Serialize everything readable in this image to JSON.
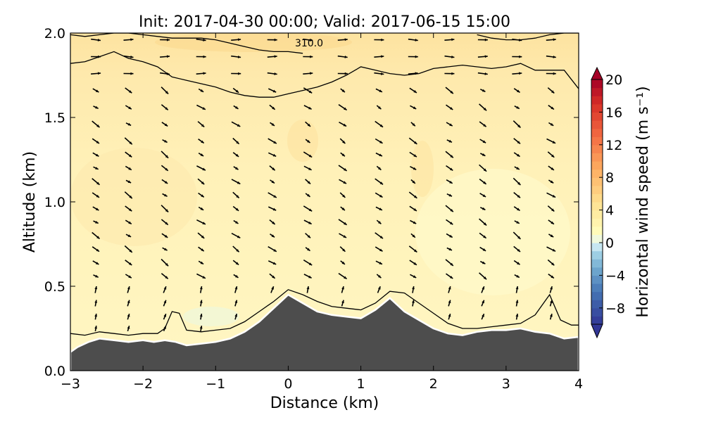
{
  "chart_data": {
    "type": "heatmap",
    "title": "Init: 2017-04-30 00:00; Valid: 2017-06-15 15:00",
    "xlabel": "Distance (km)",
    "ylabel": "Altitude (km)",
    "xlim": [
      -3,
      4
    ],
    "ylim": [
      0.0,
      2.0
    ],
    "x_ticks": [
      -3,
      -2,
      -1,
      0,
      1,
      2,
      3,
      4
    ],
    "x_tick_labels": [
      "−3",
      "−2",
      "−1",
      "0",
      "1",
      "2",
      "3",
      "4"
    ],
    "y_ticks": [
      0.0,
      0.5,
      1.0,
      1.5,
      2.0
    ],
    "y_tick_labels": [
      "0.0",
      "0.5",
      "1.0",
      "1.5",
      "2.0"
    ],
    "colorbar": {
      "label": "Horizontal wind speed (m s⁻¹)",
      "range": [
        -10,
        20
      ],
      "ticks": [
        20,
        16,
        12,
        8,
        4,
        0,
        -4,
        -8
      ],
      "tick_labels": [
        "20",
        "16",
        "12",
        "8",
        "4",
        "0",
        "−4",
        "−8"
      ],
      "colormap": "RdYlBu_r",
      "extend": "both"
    },
    "contour_label": "310.0",
    "terrain": {
      "x": [
        -3.0,
        -2.9,
        -2.75,
        -2.6,
        -2.4,
        -2.2,
        -2.0,
        -1.85,
        -1.7,
        -1.55,
        -1.4,
        -1.2,
        -1.0,
        -0.8,
        -0.6,
        -0.4,
        -0.2,
        0.0,
        0.2,
        0.4,
        0.6,
        0.8,
        1.0,
        1.2,
        1.4,
        1.6,
        1.8,
        2.0,
        2.2,
        2.4,
        2.6,
        2.8,
        3.0,
        3.2,
        3.4,
        3.6,
        3.8,
        4.0
      ],
      "y": [
        0.11,
        0.14,
        0.17,
        0.19,
        0.18,
        0.17,
        0.18,
        0.17,
        0.18,
        0.17,
        0.15,
        0.16,
        0.17,
        0.19,
        0.23,
        0.29,
        0.37,
        0.45,
        0.4,
        0.35,
        0.33,
        0.32,
        0.31,
        0.36,
        0.43,
        0.35,
        0.3,
        0.25,
        0.22,
        0.21,
        0.23,
        0.24,
        0.24,
        0.25,
        0.23,
        0.22,
        0.19,
        0.2
      ]
    },
    "terrain_color": "#4d4d4d",
    "contour_lines": [
      {
        "x": [
          -3.0,
          -2.8,
          -2.6,
          -2.4,
          -2.2,
          -2.0,
          -1.8,
          -1.7,
          -1.6,
          -1.5,
          -1.4,
          -1.2,
          -1.0,
          -0.8,
          -0.6,
          -0.4,
          -0.2,
          0.0,
          0.2,
          0.4,
          0.6,
          0.8,
          1.0,
          1.2,
          1.4,
          1.6,
          1.8,
          2.0,
          2.2,
          2.4,
          2.6,
          2.8,
          3.0,
          3.2,
          3.4,
          3.6,
          3.75,
          3.9,
          4.0
        ],
        "y": [
          0.22,
          0.21,
          0.23,
          0.22,
          0.21,
          0.22,
          0.22,
          0.25,
          0.35,
          0.34,
          0.24,
          0.23,
          0.24,
          0.25,
          0.29,
          0.35,
          0.41,
          0.48,
          0.45,
          0.41,
          0.38,
          0.37,
          0.36,
          0.4,
          0.47,
          0.46,
          0.4,
          0.34,
          0.28,
          0.25,
          0.25,
          0.26,
          0.27,
          0.28,
          0.33,
          0.45,
          0.3,
          0.27,
          0.27
        ]
      },
      {
        "x": [
          -3.0,
          -2.8,
          -2.6,
          -2.4,
          -2.2,
          -2.0,
          -1.8,
          -1.6,
          -1.4,
          -1.2,
          -1.0,
          -0.8,
          -0.6,
          -0.4,
          -0.2,
          0.0,
          0.2,
          0.4,
          0.6,
          0.8,
          1.0,
          1.2,
          1.4,
          1.6,
          1.8,
          2.0,
          2.2,
          2.4,
          2.6,
          2.8,
          3.0,
          3.2,
          3.4,
          3.6,
          3.8,
          4.0
        ],
        "y": [
          1.82,
          1.83,
          1.86,
          1.89,
          1.85,
          1.83,
          1.8,
          1.74,
          1.72,
          1.7,
          1.68,
          1.65,
          1.63,
          1.62,
          1.62,
          1.64,
          1.66,
          1.68,
          1.71,
          1.75,
          1.8,
          1.78,
          1.76,
          1.75,
          1.76,
          1.79,
          1.8,
          1.81,
          1.8,
          1.79,
          1.8,
          1.82,
          1.78,
          1.78,
          1.78,
          1.67
        ]
      },
      {
        "x": [
          -3.0,
          -2.8,
          -2.6,
          -2.4,
          -2.2,
          -2.0,
          -1.8,
          -1.6,
          -1.4,
          -1.2,
          -1.0,
          -0.8,
          -0.6,
          -0.4,
          -0.2,
          0.0,
          0.2
        ],
        "y": [
          1.99,
          1.98,
          1.99,
          2.0,
          2.0,
          1.99,
          1.98,
          1.97,
          1.97,
          1.97,
          1.96,
          1.94,
          1.92,
          1.9,
          1.89,
          1.89,
          1.88
        ]
      },
      {
        "x": [
          2.6,
          2.8,
          3.0,
          3.2,
          3.4,
          3.6,
          3.8,
          4.0
        ],
        "y": [
          1.99,
          1.97,
          1.96,
          1.96,
          1.97,
          1.99,
          2.0,
          2.0
        ]
      }
    ],
    "quiver_columns_x": [
      -2.65,
      -2.2,
      -1.7,
      -1.2,
      -0.72,
      -0.22,
      0.27,
      0.75,
      1.25,
      1.72,
      2.22,
      2.68,
      3.15,
      3.62
    ],
    "quiver_rows_y": [
      0.25,
      0.32,
      0.4,
      0.48,
      0.56,
      0.64,
      0.72,
      0.8,
      0.88,
      0.96,
      1.04,
      1.12,
      1.2,
      1.28,
      1.36,
      1.46,
      1.56,
      1.66,
      1.76,
      1.86,
      1.96
    ]
  }
}
